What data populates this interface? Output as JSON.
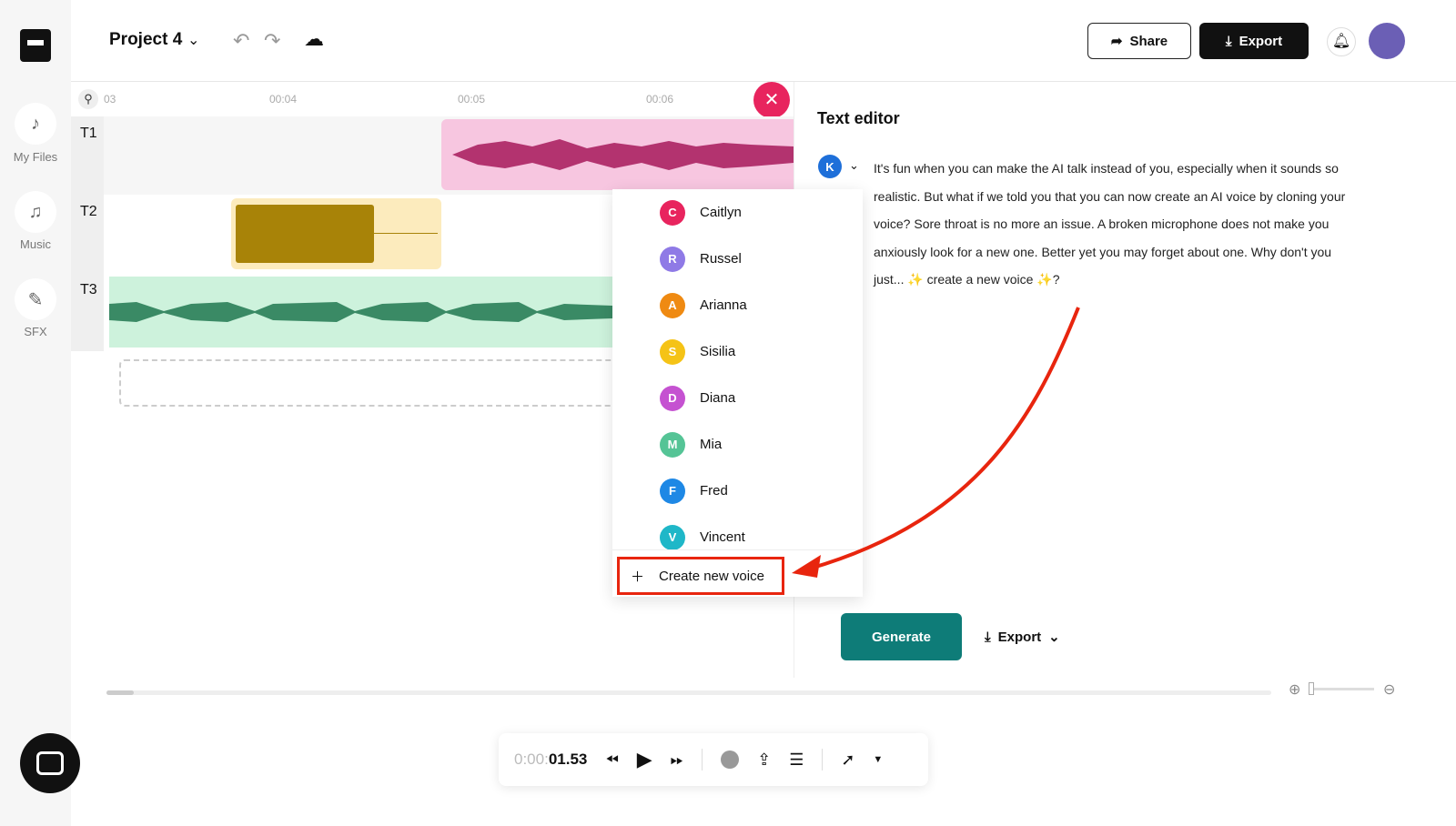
{
  "sidebar": {
    "items": [
      {
        "label": "My Files",
        "icon": "file-music-icon"
      },
      {
        "label": "Music",
        "icon": "music-note-icon"
      },
      {
        "label": "SFX",
        "icon": "magic-wand-icon"
      }
    ]
  },
  "header": {
    "project_title": "Project 4",
    "share_label": "Share",
    "export_label": "Export"
  },
  "timeline": {
    "ticks": [
      "03",
      "00:04",
      "00:05",
      "00:06"
    ],
    "tracks": [
      "T1",
      "T2",
      "T3"
    ],
    "track_colors": {
      "T1": "#f7c6e0",
      "T2": "#fcebbd",
      "T3": "#cdf2dc"
    }
  },
  "voices": [
    {
      "initial": "C",
      "name": "Caitlyn",
      "color": "#e8245e"
    },
    {
      "initial": "R",
      "name": "Russel",
      "color": "#8f7ae6"
    },
    {
      "initial": "A",
      "name": "Arianna",
      "color": "#ef8a12"
    },
    {
      "initial": "S",
      "name": "Sisilia",
      "color": "#f5c316"
    },
    {
      "initial": "D",
      "name": "Diana",
      "color": "#c552d1"
    },
    {
      "initial": "M",
      "name": "Mia",
      "color": "#55c496"
    },
    {
      "initial": "F",
      "name": "Fred",
      "color": "#1e88e5"
    },
    {
      "initial": "V",
      "name": "Vincent",
      "color": "#1fb7c8"
    }
  ],
  "create_voice_label": "Create new voice",
  "editor": {
    "title": "Text editor",
    "speaker_initial": "K",
    "text": "It's fun when you can make the AI talk instead of you, especially when it sounds so realistic. But what if we told you that you can now create an AI voice by cloning your voice? Sore throat is no more an issue. A broken microphone does not make you anxiously look for a new one. Better yet you may forget about one. Why don't you just... ✨ create a new voice ✨?",
    "generate_label": "Generate",
    "export_label": "Export"
  },
  "player": {
    "time_prefix": "0:00:",
    "time_value": "01.53"
  },
  "accent": "#0e7c78"
}
